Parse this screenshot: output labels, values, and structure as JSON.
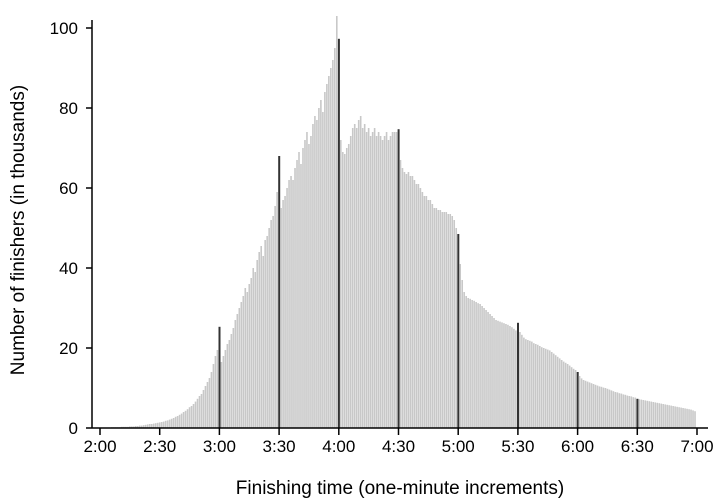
{
  "chart_data": {
    "type": "bar",
    "title": "",
    "xlabel": "Finishing time (one-minute increments)",
    "ylabel": "Number of finishers (in thousands)",
    "x_start": "2:00",
    "x_step_minutes": 1,
    "xlim": [
      "2:00",
      "7:00"
    ],
    "ylim": [
      0,
      105
    ],
    "x_ticks": [
      "2:00",
      "2:30",
      "3:00",
      "3:30",
      "4:00",
      "4:30",
      "5:00",
      "5:30",
      "6:00",
      "6:30",
      "7:00"
    ],
    "y_ticks": [
      0,
      20,
      40,
      60,
      80,
      100
    ],
    "grid": false,
    "highlighted_times": [
      "3:00",
      "3:30",
      "4:00",
      "4:30",
      "5:00",
      "5:30",
      "6:00",
      "6:30"
    ],
    "colors": {
      "bar": "#c8c8c8",
      "highlight": "#333333",
      "axis": "#000000"
    },
    "values": [
      0.1,
      0.1,
      0.1,
      0.1,
      0.1,
      0.1,
      0.2,
      0.2,
      0.2,
      0.2,
      0.2,
      0.3,
      0.3,
      0.3,
      0.3,
      0.4,
      0.4,
      0.4,
      0.5,
      0.5,
      0.6,
      0.6,
      0.7,
      0.8,
      0.9,
      1.0,
      1.0,
      1.1,
      1.2,
      1.3,
      1.4,
      1.5,
      1.6,
      1.8,
      1.9,
      2.1,
      2.3,
      2.5,
      2.8,
      3.0,
      3.3,
      3.6,
      4.0,
      4.3,
      4.7,
      5.2,
      5.5,
      6.0,
      6.6,
      7.3,
      8.0,
      8.5,
      9.5,
      10.5,
      11.5,
      12.5,
      14,
      16,
      18,
      19.5,
      25.3,
      16.5,
      18,
      19.5,
      21,
      22,
      23.5,
      25,
      27,
      28.5,
      30,
      31.5,
      33,
      35,
      34,
      36,
      37.5,
      40,
      39,
      42,
      44,
      45.5,
      43,
      47,
      48,
      50,
      52,
      53,
      55.5,
      59,
      68,
      55,
      57,
      58,
      60,
      62,
      63,
      62,
      65,
      67,
      69,
      66,
      70,
      72,
      74,
      71,
      73,
      76,
      78,
      77,
      80,
      82,
      79,
      84,
      86,
      88,
      90,
      92,
      95,
      103,
      97.3,
      72,
      69,
      68.5,
      70,
      71,
      73,
      75,
      76,
      75,
      77,
      78,
      75,
      76,
      74,
      75,
      73,
      74,
      75,
      73,
      74,
      73,
      72,
      73,
      74,
      72,
      73,
      74,
      74,
      74,
      74.7,
      67,
      65,
      64,
      63.5,
      64,
      63,
      63,
      62,
      61,
      61,
      60,
      59,
      58,
      58,
      57,
      57,
      56,
      55,
      55,
      54.5,
      54.5,
      54,
      54,
      54,
      53.5,
      53.5,
      53,
      52,
      50,
      48.5,
      41,
      37,
      34,
      33,
      32.5,
      32.3,
      32,
      31.8,
      31.5,
      31.2,
      31,
      30.5,
      30,
      29.5,
      29,
      28.5,
      28,
      27.5,
      27,
      26.8,
      26.6,
      26.4,
      26.2,
      26,
      25.8,
      25.5,
      25.2,
      24.8,
      24.4,
      26.3,
      24,
      23.3,
      22.6,
      22.2,
      22,
      21.8,
      21.6,
      21.2,
      21,
      20.8,
      20.5,
      20.2,
      20,
      19.8,
      19.6,
      19.4,
      19,
      18.6,
      18.2,
      17.8,
      17.4,
      17,
      16.6,
      16.3,
      16,
      15.6,
      15.2,
      14.8,
      14.5,
      14,
      13,
      12.4,
      12,
      11.8,
      11.6,
      11.4,
      11.2,
      11,
      10.8,
      10.6,
      10.4,
      10.3,
      10.1,
      10,
      9.8,
      9.6,
      9.4,
      9.2,
      9,
      8.9,
      8.7,
      8.6,
      8.4,
      8.3,
      8.1,
      8,
      7.9,
      7.7,
      7.6,
      7.3,
      7.2,
      7.1,
      7,
      6.9,
      6.8,
      6.7,
      6.6,
      6.5,
      6.4,
      6.3,
      6.2,
      6.1,
      6,
      5.9,
      5.8,
      5.7,
      5.6,
      5.5,
      5.4,
      5.3,
      5.2,
      5.1,
      5,
      4.9,
      4.8,
      4.7,
      4.6,
      4.4,
      4.2
    ]
  }
}
